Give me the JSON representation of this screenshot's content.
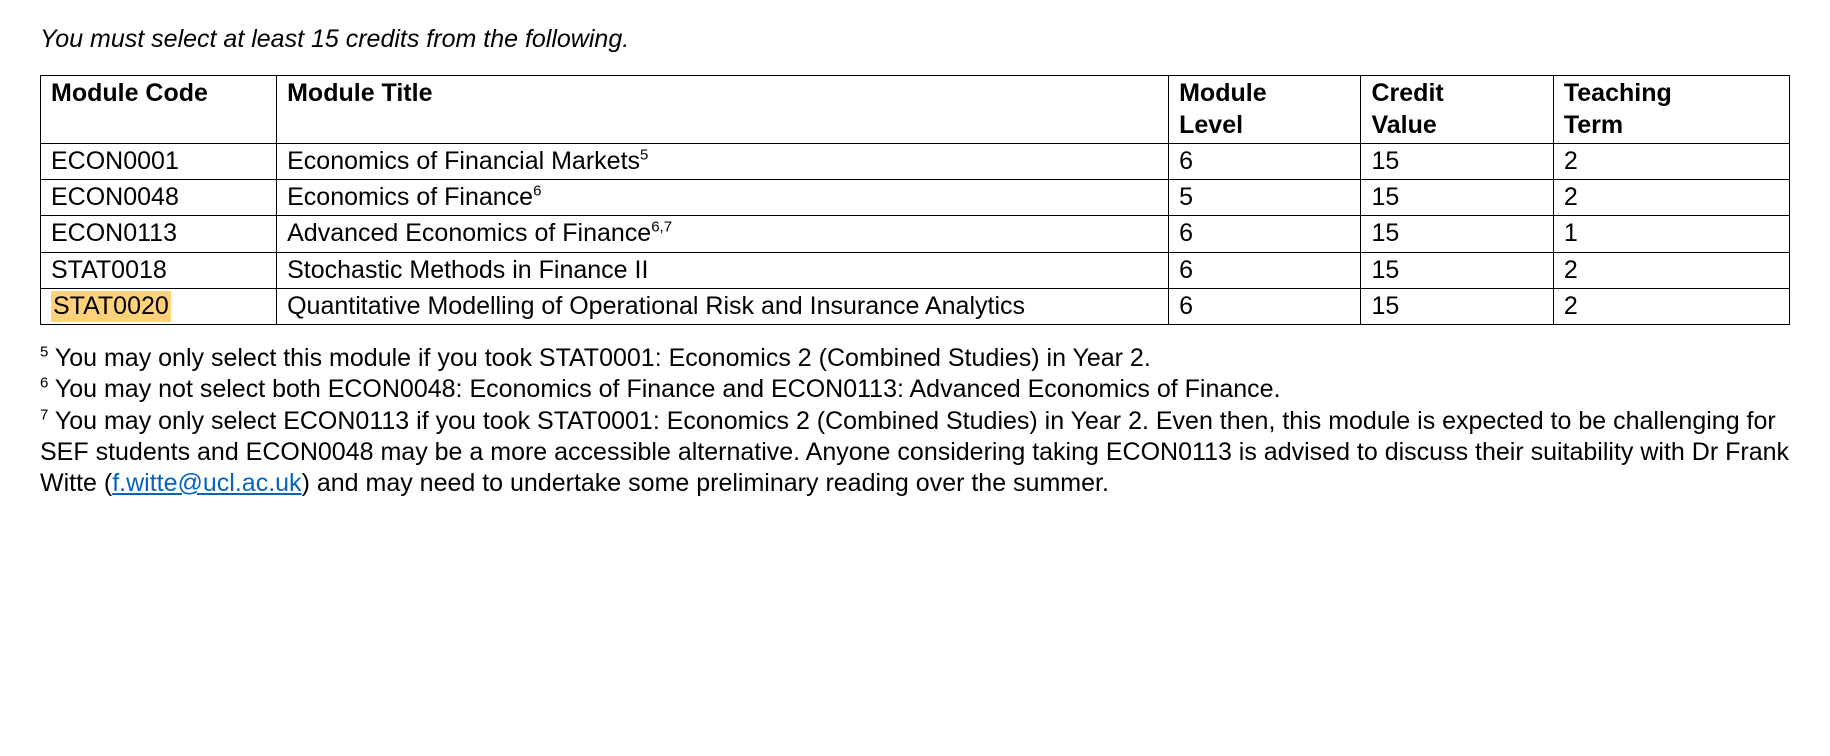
{
  "intro": "You must select at least 15 credits from the following.",
  "table": {
    "headers": {
      "code": "Module Code",
      "title": "Module Title",
      "level_a": "Module",
      "level_b": "Level",
      "credit_a": "Credit",
      "credit_b": "Value",
      "term_a": "Teaching",
      "term_b": "Term"
    },
    "rows": [
      {
        "code": "ECON0001",
        "title": "Economics of Financial Markets",
        "sup": "5",
        "level": "6",
        "credit": "15",
        "term": "2",
        "highlight": false
      },
      {
        "code": "ECON0048",
        "title": "Economics of Finance",
        "sup": "6",
        "level": "5",
        "credit": "15",
        "term": "2",
        "highlight": false
      },
      {
        "code": "ECON0113",
        "title": "Advanced Economics of Finance",
        "sup": "6,7",
        "level": "6",
        "credit": "15",
        "term": "1",
        "highlight": false
      },
      {
        "code": "STAT0018",
        "title": "Stochastic Methods in Finance II",
        "sup": "",
        "level": "6",
        "credit": "15",
        "term": "2",
        "highlight": false
      },
      {
        "code": "STAT0020",
        "title": "Quantitative Modelling of Operational Risk and Insurance Analytics",
        "sup": "",
        "level": "6",
        "credit": "15",
        "term": "2",
        "highlight": true
      }
    ]
  },
  "footnotes": {
    "f5": {
      "num": "5",
      "text": " You may only select this module if you took STAT0001: Economics 2 (Combined Studies) in Year 2."
    },
    "f6": {
      "num": "6",
      "text": " You may not select both ECON0048: Economics of Finance and ECON0113: Advanced Economics of Finance."
    },
    "f7": {
      "num": "7",
      "text_a": " You may only select ECON0113 if you took STAT0001: Economics 2 (Combined Studies) in Year 2. Even then, this module is expected to be challenging for SEF students and ECON0048 may be a more accessible alternative. Anyone considering taking ECON0113 is advised to discuss their suitability with Dr Frank Witte (",
      "link": "f.witte@ucl.ac.uk",
      "text_b": ") and may need to undertake some preliminary reading over the summer."
    }
  },
  "style": {
    "highlight_color": "#ffd27a",
    "link_color": "#0563c1",
    "border_color": "#000000",
    "text_color": "#000000",
    "background_color": "#ffffff",
    "font_size_pt": 19,
    "col_widths_pct": [
      13.5,
      51,
      11,
      11,
      13.5
    ]
  }
}
